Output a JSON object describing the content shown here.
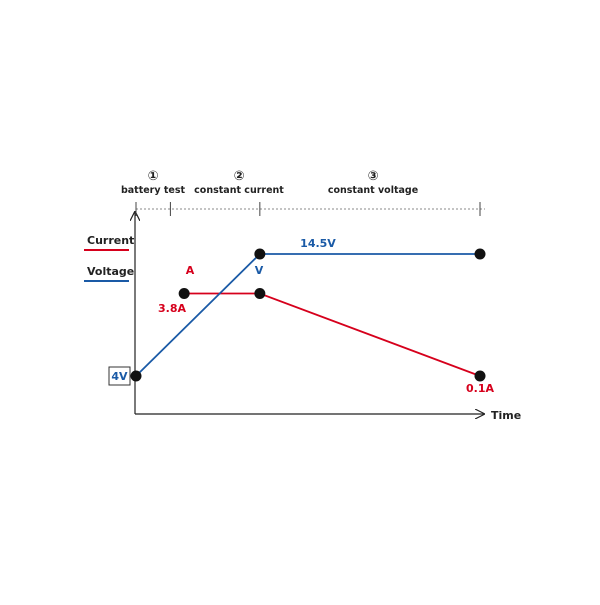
{
  "chart_data": {
    "type": "line",
    "xlabel": "Time",
    "phases": [
      {
        "number": "①",
        "label": "battery test"
      },
      {
        "number": "②",
        "label": "constant current"
      },
      {
        "number": "③",
        "label": "constant voltage"
      }
    ],
    "legend": [
      {
        "name": "Current",
        "color": "#d6001c"
      },
      {
        "name": "Voltage",
        "color": "#1a5aa6"
      }
    ],
    "series": [
      {
        "name": "Current",
        "color": "#d6001c",
        "points": [
          {
            "phase_pos": 0.14,
            "level": 0.46,
            "label": "3.8A"
          },
          {
            "phase_pos": 0.36,
            "level": 0.46,
            "label": ""
          },
          {
            "phase_pos": 1.0,
            "level": 0.0,
            "label": "0.1A"
          }
        ],
        "inline_label": "A"
      },
      {
        "name": "Voltage",
        "color": "#1a5aa6",
        "points": [
          {
            "phase_pos": 0.0,
            "level": 0.0,
            "label": "4V"
          },
          {
            "phase_pos": 0.36,
            "level": 0.68,
            "label": ""
          },
          {
            "phase_pos": 1.0,
            "level": 0.68,
            "label": "14.5V"
          }
        ],
        "inline_label": "V"
      }
    ],
    "phase_boundaries": [
      0.0,
      0.1,
      0.36,
      1.0
    ]
  }
}
